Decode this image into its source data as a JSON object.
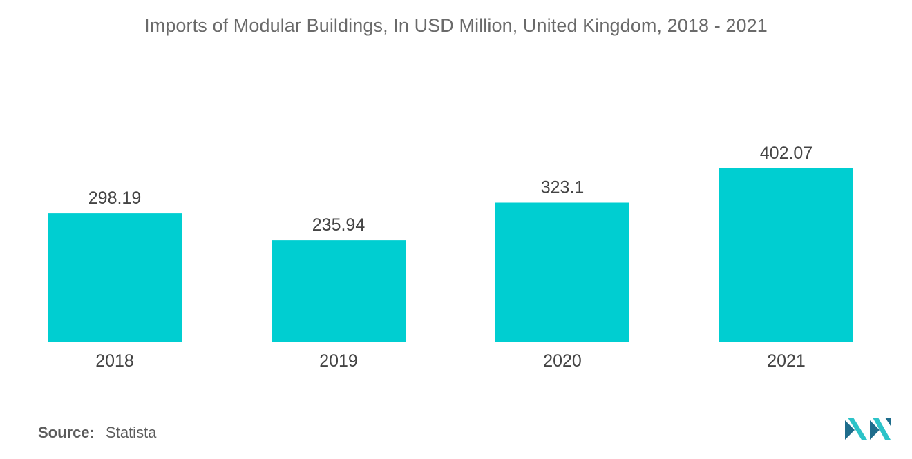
{
  "chart_data": {
    "type": "bar",
    "title": "Imports of Modular Buildings, In USD Million, United Kingdom, 2018 - 2021",
    "categories": [
      "2018",
      "2019",
      "2020",
      "2021"
    ],
    "values": [
      298.19,
      235.94,
      323.1,
      402.07
    ],
    "value_labels": [
      "298.19",
      "235.94",
      "323.1",
      "402.07"
    ],
    "xlabel": "",
    "ylabel": "",
    "ylim": [
      0,
      402.07
    ],
    "grid": false,
    "legend": "none",
    "bar_color": "#00CED1"
  },
  "footer": {
    "source_label": "Source:",
    "source_value": "Statista"
  },
  "colors": {
    "bar": "#00CED1",
    "title": "#6a6a6a",
    "labels": "#444444",
    "logo_dark": "#1f6d8c",
    "logo_light": "#2cc3c8"
  },
  "logo": {
    "icon": "mordor-intelligence-logo-icon"
  }
}
